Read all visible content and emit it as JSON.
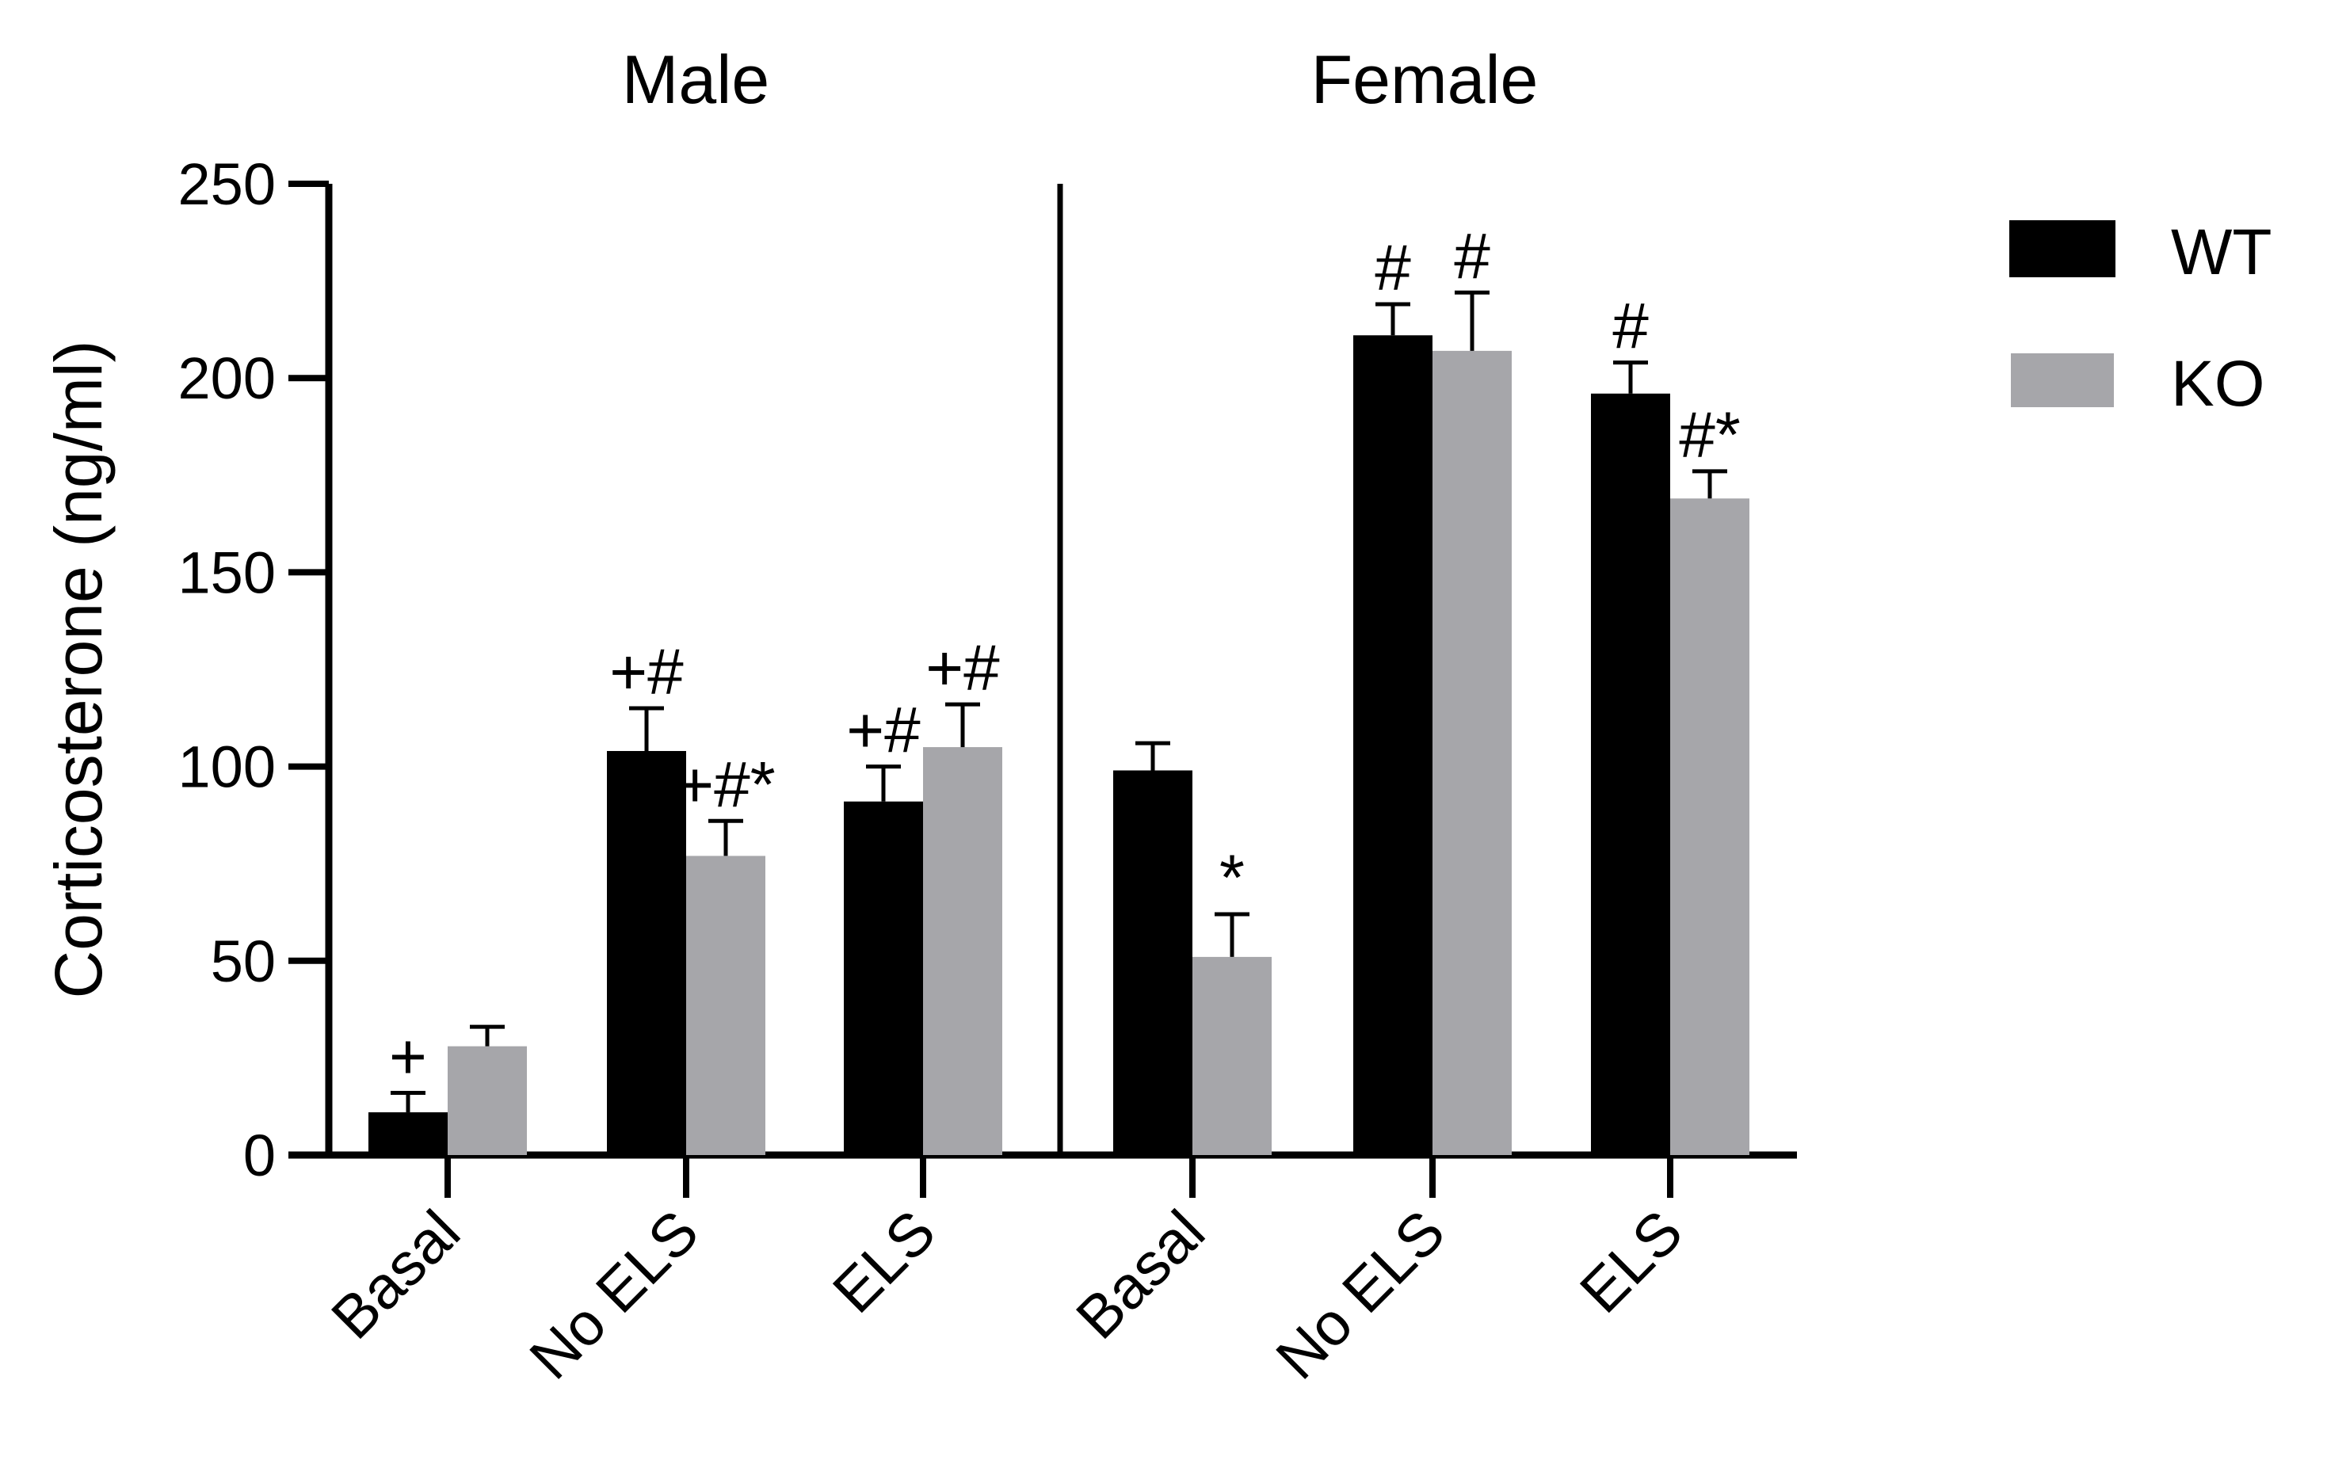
{
  "chart_data": {
    "type": "bar",
    "ylabel": "Corticosterone (ng/ml)",
    "ylim": [
      0,
      250
    ],
    "yticks": [
      0,
      50,
      100,
      150,
      200,
      250
    ],
    "panels": [
      {
        "title": "Male",
        "categories": [
          "Basal",
          "No ELS",
          "ELS"
        ],
        "series": [
          {
            "name": "WT",
            "values": [
              11,
              104,
              91
            ],
            "errors": [
              5,
              11,
              9
            ],
            "annotations": [
              "+",
              "+#",
              "+#"
            ]
          },
          {
            "name": "KO",
            "values": [
              28,
              77,
              105
            ],
            "errors": [
              5,
              9,
              11
            ],
            "annotations": [
              "",
              "+#*",
              "+#"
            ]
          }
        ]
      },
      {
        "title": "Female",
        "categories": [
          "Basal",
          "No ELS",
          "ELS"
        ],
        "series": [
          {
            "name": "WT",
            "values": [
              99,
              211,
              196
            ],
            "errors": [
              7,
              8,
              8
            ],
            "annotations": [
              "",
              "#",
              "#"
            ]
          },
          {
            "name": "KO",
            "values": [
              51,
              207,
              169
            ],
            "errors": [
              11,
              15,
              7
            ],
            "annotations": [
              "*",
              "#",
              "#*"
            ]
          }
        ]
      }
    ],
    "legend": {
      "position": "top-right",
      "entries": [
        {
          "label": "WT",
          "color": "#000000"
        },
        {
          "label": "KO",
          "color": "#a6a6aa"
        }
      ]
    }
  }
}
